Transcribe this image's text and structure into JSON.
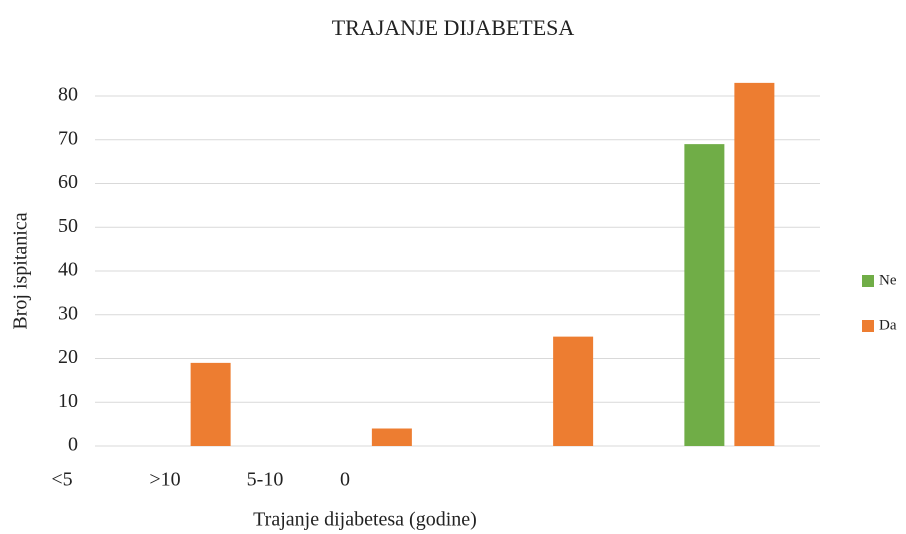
{
  "chart_data": {
    "type": "bar",
    "title": "TRAJANJE DIJABETESA",
    "x_label": "Trajanje dijabetesa (godine)",
    "y_label": "Broj ispitanica",
    "categories": [
      "<5",
      ">10",
      "5-10",
      "0"
    ],
    "series": [
      {
        "name": "Ne",
        "color": "#70ad47",
        "values": [
          0,
          0,
          0,
          69
        ]
      },
      {
        "name": "Da",
        "color": "#ed7d31",
        "values": [
          19,
          4,
          25,
          83
        ]
      }
    ],
    "ylim": [
      0,
      80
    ],
    "yticks": [
      0,
      10,
      20,
      30,
      40,
      50,
      60,
      70,
      80
    ],
    "grid": true,
    "legend": "right"
  }
}
